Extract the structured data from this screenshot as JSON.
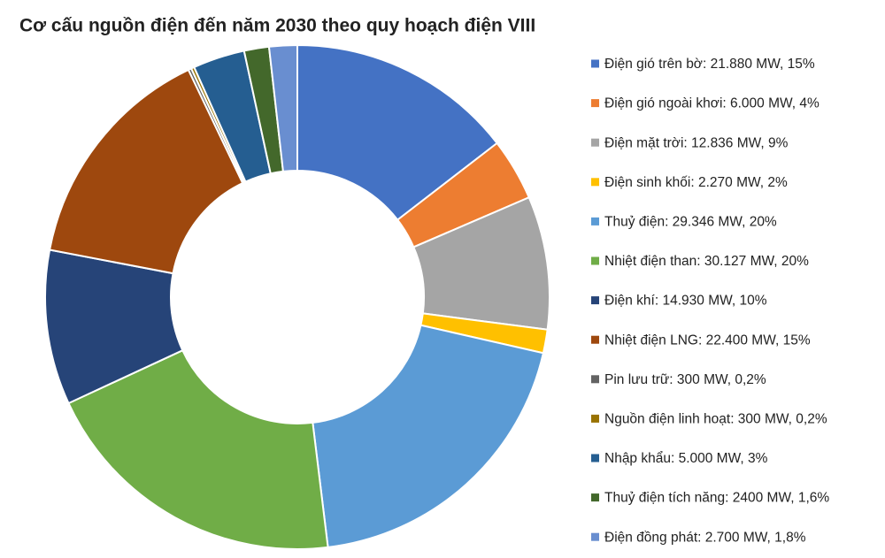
{
  "chart_data": {
    "type": "pie",
    "title": "Cơ cấu nguồn điện đến năm 2030 theo quy hoạch điện VIII",
    "labels": [
      "Điện gió trên bờ: 21.880 MW, 15%",
      "Điện gió ngoài khơi: 6.000 MW, 4%",
      "Điện mặt trời: 12.836 MW, 9%",
      "Điện sinh khối: 2.270 MW, 2%",
      "Thuỷ điện: 29.346 MW, 20%",
      "Nhiệt điện than: 30.127 MW,  20%",
      "Điện khí: 14.930 MW, 10%",
      "Nhiệt điện LNG: 22.400 MW, 15%",
      "Pin lưu trữ: 300 MW, 0,2%",
      "Nguồn điện linh hoạt: 300 MW, 0,2%",
      "Nhập khẩu: 5.000 MW, 3%",
      "Thuỷ điện tích năng: 2400 MW, 1,6%",
      "Điện đồng phát: 2.700 MW, 1,8%"
    ],
    "values": [
      21880,
      6000,
      12836,
      2270,
      29346,
      30127,
      14930,
      22400,
      300,
      300,
      5000,
      2400,
      2700
    ],
    "colors": [
      "#4472c4",
      "#ed7d31",
      "#a5a5a5",
      "#ffc000",
      "#5b9bd5",
      "#70ad47",
      "#264478",
      "#9e480e",
      "#636363",
      "#997300",
      "#255e91",
      "#43682b",
      "#698ed0"
    ],
    "donut": true,
    "legend": "right"
  }
}
